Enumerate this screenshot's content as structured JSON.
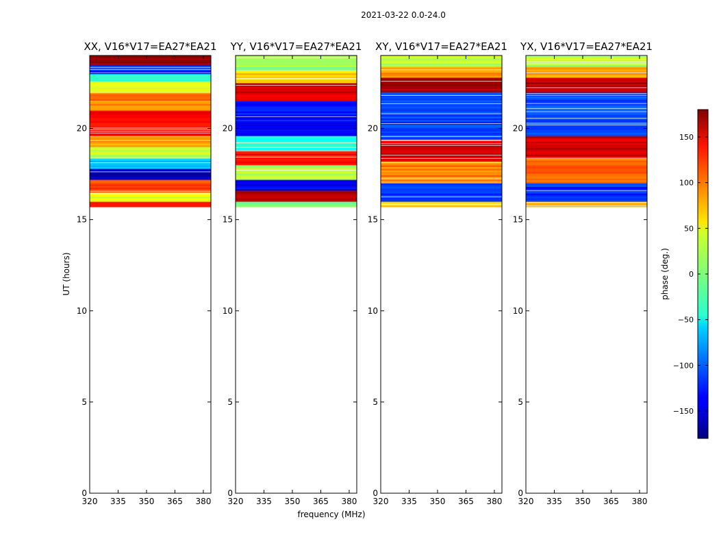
{
  "suptitle": "2021-03-22 0.0-24.0",
  "xlabel": "frequency (MHz)",
  "ylabel": "UT (hours)",
  "colorbar": {
    "label": "phase (deg.)",
    "range": [
      -180,
      180
    ],
    "ticks": [
      -150,
      -100,
      -50,
      0,
      50,
      100,
      150
    ],
    "tick_labels": [
      "−150",
      "−100",
      "−50",
      "0",
      "50",
      "100",
      "150"
    ],
    "colormap": "jet"
  },
  "chart_data": [
    {
      "type": "heatmap",
      "title": "XX, V16*V17=EA27*EA21",
      "xlim": [
        320,
        384
      ],
      "ylim": [
        0,
        24
      ],
      "x_ticks": [
        320,
        335,
        350,
        365,
        380
      ],
      "y_ticks": [
        0,
        5,
        10,
        15,
        20
      ],
      "data_extent_hours": [
        15.7,
        24.0
      ],
      "bands": [
        {
          "from": 15.7,
          "to": 16.0,
          "phase": 120
        },
        {
          "from": 16.0,
          "to": 16.5,
          "phase": 40
        },
        {
          "from": 16.5,
          "to": 17.2,
          "phase": 110
        },
        {
          "from": 17.2,
          "to": 17.8,
          "phase": -160
        },
        {
          "from": 17.8,
          "to": 18.4,
          "phase": -60
        },
        {
          "from": 18.4,
          "to": 19.0,
          "phase": 30
        },
        {
          "from": 19.0,
          "to": 19.6,
          "phase": 75
        },
        {
          "from": 19.6,
          "to": 21.0,
          "phase": 130
        },
        {
          "from": 21.0,
          "to": 22.0,
          "phase": 90
        },
        {
          "from": 22.0,
          "to": 22.6,
          "phase": 30
        },
        {
          "from": 22.6,
          "to": 23.0,
          "phase": -40
        },
        {
          "from": 23.0,
          "to": 23.5,
          "phase": -120
        },
        {
          "from": 23.5,
          "to": 24.0,
          "phase": 165
        }
      ]
    },
    {
      "type": "heatmap",
      "title": "YY, V16*V17=EA27*EA21",
      "xlim": [
        320,
        384
      ],
      "ylim": [
        0,
        24
      ],
      "x_ticks": [
        320,
        335,
        350,
        365,
        380
      ],
      "y_ticks": [
        0,
        5,
        10,
        15,
        20
      ],
      "data_extent_hours": [
        15.7,
        24.0
      ],
      "bands": [
        {
          "from": 15.7,
          "to": 16.0,
          "phase": 0
        },
        {
          "from": 16.0,
          "to": 16.6,
          "phase": 160
        },
        {
          "from": 16.6,
          "to": 17.2,
          "phase": -140
        },
        {
          "from": 17.2,
          "to": 18.0,
          "phase": 20
        },
        {
          "from": 18.0,
          "to": 18.8,
          "phase": 130
        },
        {
          "from": 18.8,
          "to": 19.6,
          "phase": -30
        },
        {
          "from": 19.6,
          "to": 21.5,
          "phase": -130
        },
        {
          "from": 21.5,
          "to": 22.5,
          "phase": 150
        },
        {
          "from": 22.5,
          "to": 23.2,
          "phase": 60
        },
        {
          "from": 23.2,
          "to": 24.0,
          "phase": 10
        }
      ]
    },
    {
      "type": "heatmap",
      "title": "XY, V16*V17=EA27*EA21",
      "xlim": [
        320,
        384
      ],
      "ylim": [
        0,
        24
      ],
      "x_ticks": [
        320,
        335,
        350,
        365,
        380
      ],
      "y_ticks": [
        0,
        5,
        10,
        15,
        20
      ],
      "data_extent_hours": [
        15.7,
        24.0
      ],
      "bands": [
        {
          "from": 15.7,
          "to": 16.0,
          "phase": 60
        },
        {
          "from": 16.0,
          "to": 17.0,
          "phase": -120
        },
        {
          "from": 17.0,
          "to": 18.2,
          "phase": 90
        },
        {
          "from": 18.2,
          "to": 19.4,
          "phase": 150
        },
        {
          "from": 19.4,
          "to": 22.0,
          "phase": -110
        },
        {
          "from": 22.0,
          "to": 22.8,
          "phase": 160
        },
        {
          "from": 22.8,
          "to": 23.4,
          "phase": 80
        },
        {
          "from": 23.4,
          "to": 24.0,
          "phase": 20
        }
      ]
    },
    {
      "type": "heatmap",
      "title": "YX, V16*V17=EA27*EA21",
      "xlim": [
        320,
        384
      ],
      "ylim": [
        0,
        24
      ],
      "x_ticks": [
        320,
        335,
        350,
        365,
        380
      ],
      "y_ticks": [
        0,
        5,
        10,
        15,
        20
      ],
      "data_extent_hours": [
        15.7,
        24.0
      ],
      "bands": [
        {
          "from": 15.7,
          "to": 16.0,
          "phase": 60
        },
        {
          "from": 16.0,
          "to": 17.0,
          "phase": -120
        },
        {
          "from": 17.0,
          "to": 18.4,
          "phase": 100
        },
        {
          "from": 18.4,
          "to": 19.6,
          "phase": 150
        },
        {
          "from": 19.6,
          "to": 22.0,
          "phase": -110
        },
        {
          "from": 22.0,
          "to": 22.8,
          "phase": 160
        },
        {
          "from": 22.8,
          "to": 23.4,
          "phase": 80
        },
        {
          "from": 23.4,
          "to": 24.0,
          "phase": 20
        }
      ]
    }
  ]
}
